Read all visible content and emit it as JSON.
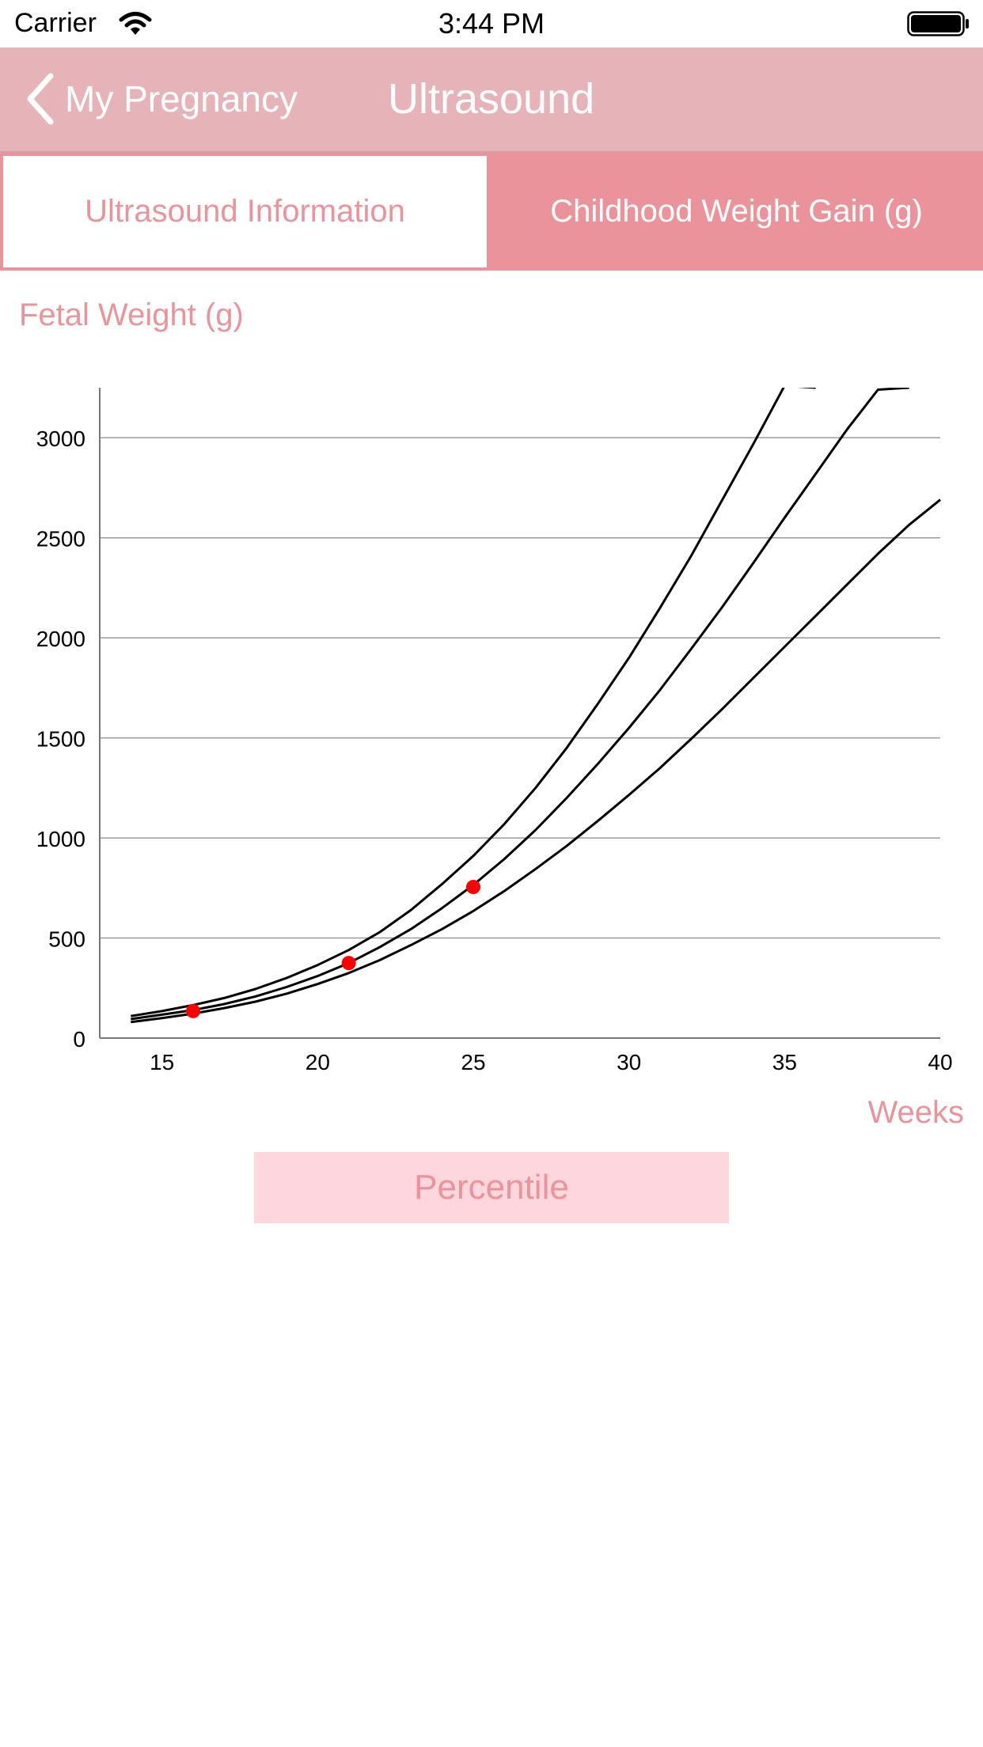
{
  "status_bar": {
    "carrier": "Carrier",
    "time": "3:44 PM"
  },
  "nav": {
    "back_label": "My Pregnancy",
    "title": "Ultrasound"
  },
  "tabs": [
    {
      "label": "Ultrasound Information",
      "selected": true
    },
    {
      "label": "Childhood Weight Gain (g)",
      "selected": false
    }
  ],
  "colors": {
    "accent": "#eb939b",
    "nav_bg": "#e6b4b8",
    "button_bg": "#fdd6de",
    "point": "#ff0000"
  },
  "chart_data": {
    "type": "line",
    "title": "Fetal Weight (g)",
    "ylabel": "Fetal Weight (g)",
    "xlabel": "Weeks",
    "xlim": [
      13,
      40
    ],
    "ylim": [
      0,
      3250
    ],
    "xticks": [
      15,
      20,
      25,
      30,
      35,
      40
    ],
    "yticks": [
      0,
      500,
      1000,
      1500,
      2000,
      2500,
      3000
    ],
    "grid": true,
    "series": [
      {
        "x": [
          14,
          15,
          16,
          17,
          18,
          19,
          20,
          21,
          22,
          23,
          24,
          25,
          26,
          27,
          28,
          29,
          30,
          31,
          32,
          33,
          34,
          35,
          36
        ],
        "values": [
          110,
          135,
          165,
          200,
          245,
          300,
          365,
          440,
          530,
          640,
          770,
          910,
          1070,
          1250,
          1450,
          1670,
          1900,
          2150,
          2410,
          2690,
          2970,
          3260,
          3250
        ]
      },
      {
        "x": [
          14,
          15,
          16,
          17,
          18,
          19,
          20,
          21,
          22,
          23,
          24,
          25,
          26,
          27,
          28,
          29,
          30,
          31,
          32,
          33,
          34,
          35,
          36,
          37,
          38,
          39
        ],
        "values": [
          95,
          117,
          140,
          170,
          208,
          255,
          310,
          375,
          455,
          545,
          650,
          765,
          895,
          1040,
          1200,
          1370,
          1550,
          1740,
          1945,
          2155,
          2375,
          2600,
          2820,
          3040,
          3240,
          3250
        ]
      },
      {
        "x": [
          14,
          15,
          16,
          17,
          18,
          19,
          20,
          21,
          22,
          23,
          24,
          25,
          26,
          27,
          28,
          29,
          30,
          31,
          32,
          33,
          34,
          35,
          36,
          37,
          38,
          39,
          40
        ],
        "values": [
          80,
          100,
          122,
          150,
          182,
          222,
          270,
          325,
          390,
          465,
          545,
          635,
          735,
          845,
          960,
          1085,
          1215,
          1350,
          1495,
          1645,
          1800,
          1955,
          2110,
          2265,
          2420,
          2565,
          2690
        ]
      }
    ],
    "points": [
      {
        "x": 16,
        "y": 135
      },
      {
        "x": 21,
        "y": 375
      },
      {
        "x": 25,
        "y": 755
      }
    ]
  },
  "buttons": {
    "percentile": "Percentile"
  }
}
